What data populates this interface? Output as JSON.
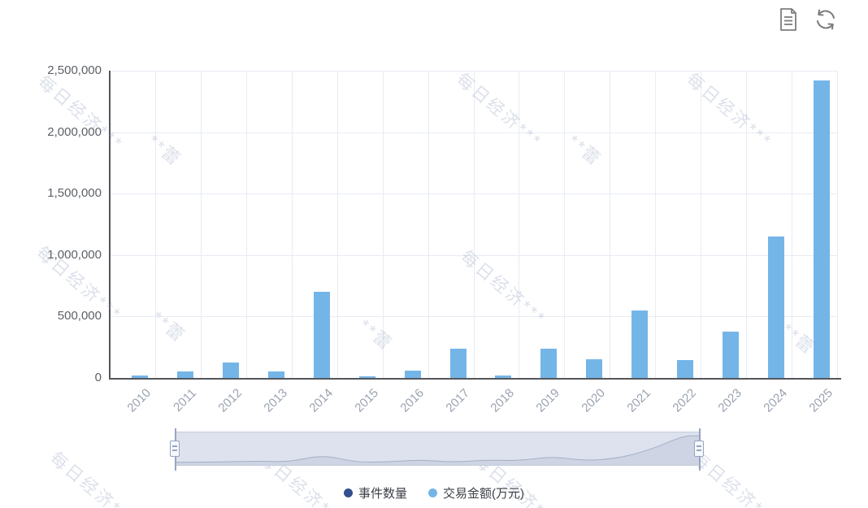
{
  "toolbar": {
    "icons": [
      {
        "name": "save-as-image-icon"
      },
      {
        "name": "restore-icon"
      }
    ]
  },
  "watermark": {
    "text_primary": "每日经济***",
    "text_secondary": "**蕾"
  },
  "legend": {
    "items": [
      {
        "label": "事件数量",
        "color": "#35508F"
      },
      {
        "label": "交易金额(万元)",
        "color": "#74B5E8"
      }
    ]
  },
  "chart_data": {
    "type": "bar",
    "title": "",
    "xlabel": "",
    "ylabel": "",
    "categories": [
      "2010",
      "2011",
      "2012",
      "2013",
      "2014",
      "2015",
      "2016",
      "2017",
      "2018",
      "2019",
      "2020",
      "2021",
      "2022",
      "2023",
      "2024",
      "2025"
    ],
    "series": [
      {
        "name": "事件数量",
        "color": "#35508F",
        "values": [],
        "bars_visible_at_scale": false
      },
      {
        "name": "交易金额(万元)",
        "color": "#74B5E8",
        "values": [
          20000,
          50000,
          125000,
          55000,
          700000,
          8000,
          60000,
          240000,
          20000,
          235000,
          155000,
          550000,
          145000,
          380000,
          1150000,
          2420000
        ]
      }
    ],
    "ylim": [
      0,
      2500000
    ],
    "yticks": [
      0,
      500000,
      1000000,
      1500000,
      2000000,
      2500000
    ],
    "ytick_labels": [
      "0",
      "500,000",
      "1,000,000",
      "1,500,000",
      "2,000,000",
      "2,500,000"
    ],
    "x_label_rotation_deg": 45,
    "grid": true,
    "legend_position": "bottom",
    "colors": {
      "axis": "#54565c",
      "grid": "#e7ebf4",
      "y_tick_label": "#5c6066",
      "x_tick_label": "#9aa2b1",
      "background": "#ffffff"
    }
  },
  "datazoom": {
    "full_range_selected": true,
    "colors": {
      "fill": "#dde2ee",
      "border": "#c2cbdc",
      "handle": "#96a5c2",
      "shadow_line": "#8c98b2"
    }
  }
}
